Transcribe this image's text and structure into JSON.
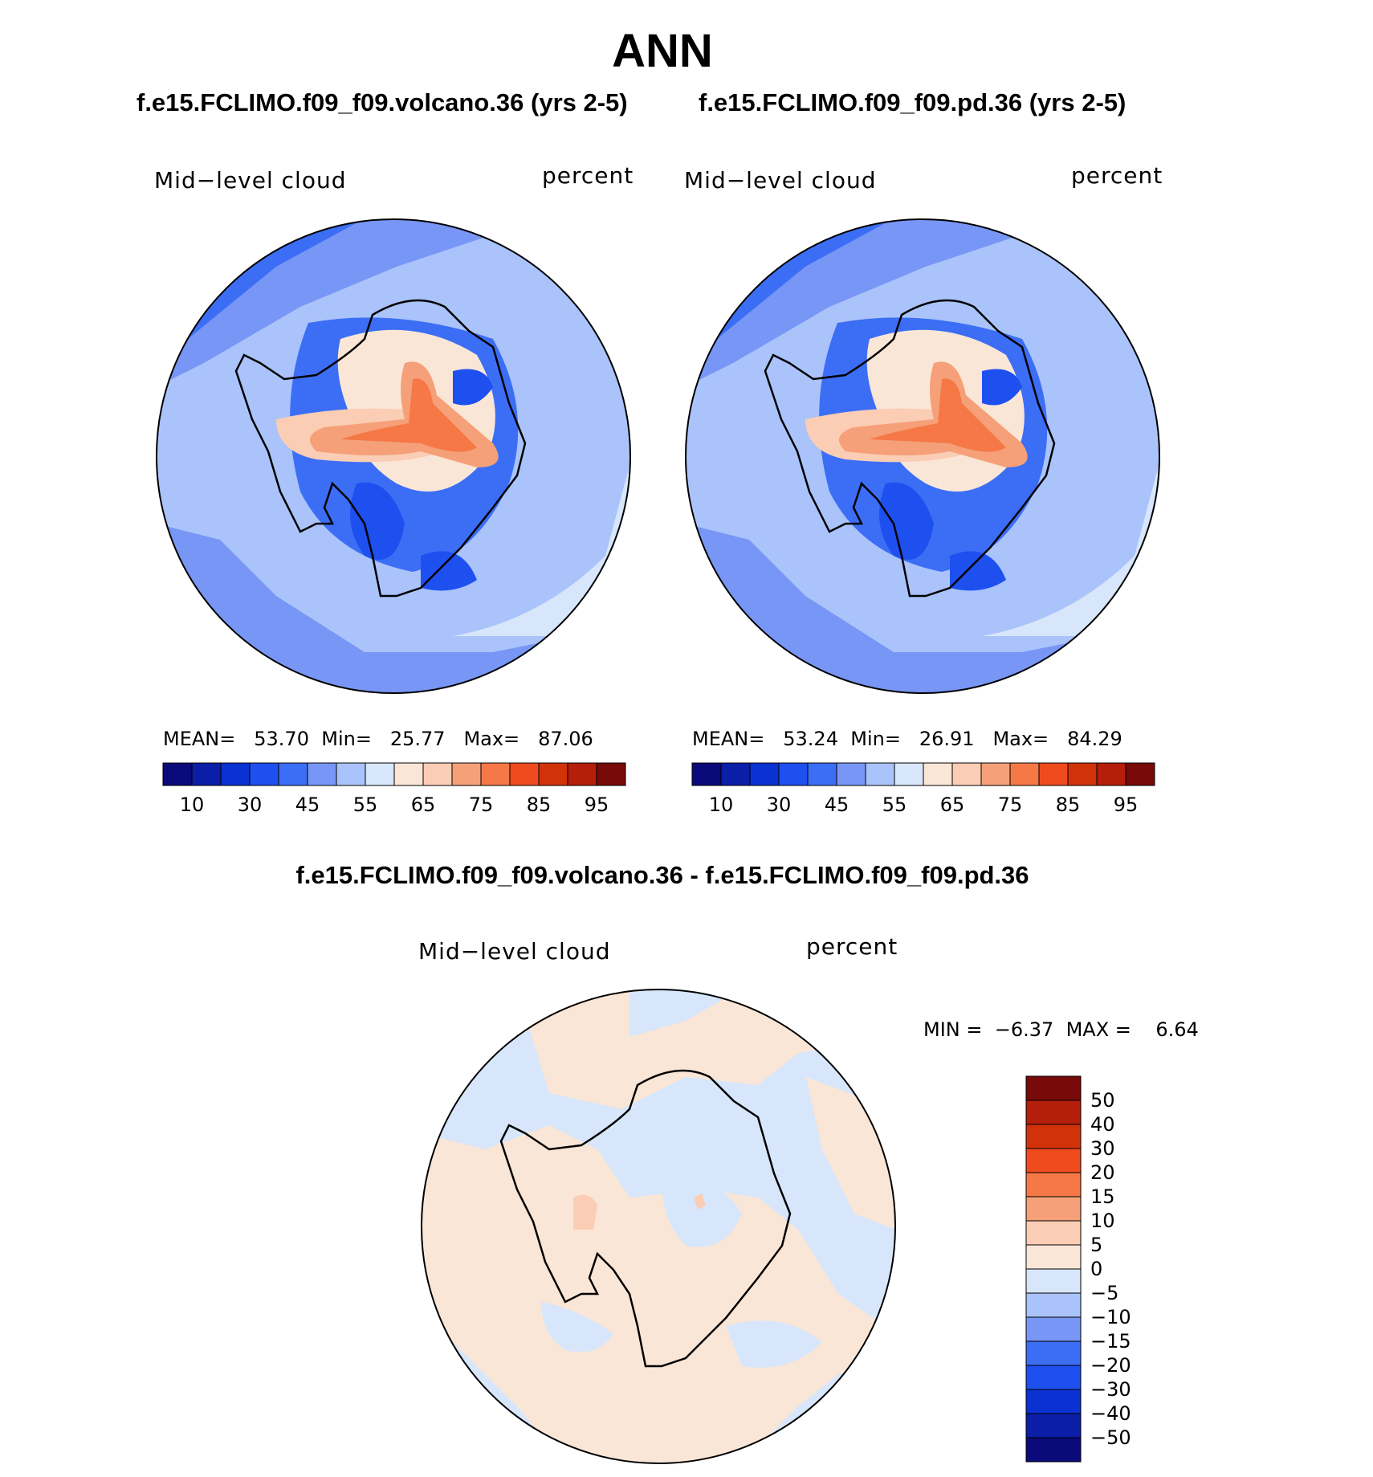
{
  "season": "ANN",
  "panels": [
    {
      "case_title": "f.e15.FCLIMO.f09_f09.volcano.36 (yrs 2-5)",
      "variable": "Mid−level cloud",
      "units": "percent",
      "stats": {
        "mean_label": "MEAN=",
        "mean": "53.70",
        "min_label": "Min=",
        "min": "25.77",
        "max_label": "Max=",
        "max": "87.06"
      }
    },
    {
      "case_title": "f.e15.FCLIMO.f09_f09.pd.36 (yrs 2-5)",
      "variable": "Mid−level cloud",
      "units": "percent",
      "stats": {
        "mean_label": "MEAN=",
        "mean": "53.24",
        "min_label": "Min=",
        "min": "26.91",
        "max_label": "Max=",
        "max": "84.29"
      }
    }
  ],
  "abs_colorbar": {
    "colors": [
      "#0a0a7a",
      "#0a1ea8",
      "#0a32d2",
      "#1e50f0",
      "#3c6ef5",
      "#7896f5",
      "#aac3fa",
      "#d7e6fa",
      "#fae6d7",
      "#facdb4",
      "#f5a078",
      "#f57846",
      "#f04b1e",
      "#d2320a",
      "#b41e0a",
      "#780a0a"
    ],
    "tick_labels": [
      "10",
      "30",
      "45",
      "55",
      "65",
      "75",
      "85",
      "95"
    ]
  },
  "diff_panel": {
    "title": "f.e15.FCLIMO.f09_f09.volcano.36 - f.e15.FCLIMO.f09_f09.pd.36",
    "variable": "Mid−level cloud",
    "units": "percent",
    "min_label": "MIN =",
    "min": "−6.37",
    "max_label": "MAX =",
    "max": "6.64",
    "colorbar": {
      "colors_top_to_bottom": [
        "#780a0a",
        "#b41e0a",
        "#d2320a",
        "#f04b1e",
        "#f57846",
        "#f5a078",
        "#facdb4",
        "#fae6d7",
        "#d7e6fa",
        "#aac3fa",
        "#7896f5",
        "#3c6ef5",
        "#1e50f0",
        "#0a32d2",
        "#0a1ea8",
        "#0a0a7a"
      ],
      "tick_labels": [
        "50",
        "40",
        "30",
        "20",
        "15",
        "10",
        "5",
        "0",
        "−5",
        "−10",
        "−15",
        "−20",
        "−30",
        "−40",
        "−50"
      ]
    }
  }
}
